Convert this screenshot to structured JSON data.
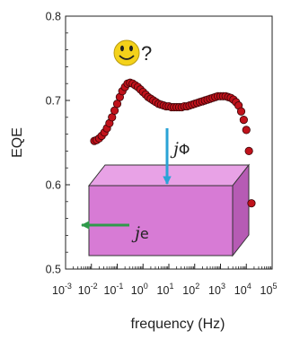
{
  "chart_data": {
    "type": "scatter",
    "xlabel": "frequency (Hz)",
    "ylabel": "EQE",
    "xscale": "log",
    "xlim": [
      0.001,
      100000
    ],
    "ylim": [
      0.5,
      0.8
    ],
    "x_ticks": [
      {
        "base": "10",
        "exp": "-3"
      },
      {
        "base": "10",
        "exp": "-2"
      },
      {
        "base": "10",
        "exp": "-1"
      },
      {
        "base": "10",
        "exp": "0"
      },
      {
        "base": "10",
        "exp": "1"
      },
      {
        "base": "10",
        "exp": "2"
      },
      {
        "base": "10",
        "exp": "3"
      },
      {
        "base": "10",
        "exp": "4"
      },
      {
        "base": "10",
        "exp": "5"
      }
    ],
    "y_ticks": [
      "0.5",
      "0.6",
      "0.7",
      "0.8"
    ],
    "marker_color": "#c0121b",
    "series": [
      {
        "points": [
          [
            0.013,
            0.652
          ],
          [
            0.016,
            0.653
          ],
          [
            0.02,
            0.655
          ],
          [
            0.025,
            0.658
          ],
          [
            0.032,
            0.662
          ],
          [
            0.04,
            0.667
          ],
          [
            0.05,
            0.673
          ],
          [
            0.063,
            0.68
          ],
          [
            0.079,
            0.688
          ],
          [
            0.1,
            0.696
          ],
          [
            0.126,
            0.704
          ],
          [
            0.158,
            0.711
          ],
          [
            0.2,
            0.716
          ],
          [
            0.251,
            0.72
          ],
          [
            0.316,
            0.721
          ],
          [
            0.398,
            0.72
          ],
          [
            0.501,
            0.718
          ],
          [
            0.631,
            0.716
          ],
          [
            0.794,
            0.713
          ],
          [
            1.0,
            0.71
          ],
          [
            1.26,
            0.707
          ],
          [
            1.58,
            0.704
          ],
          [
            2.0,
            0.702
          ],
          [
            2.51,
            0.7
          ],
          [
            3.16,
            0.698
          ],
          [
            3.98,
            0.696
          ],
          [
            5.01,
            0.695
          ],
          [
            6.31,
            0.694
          ],
          [
            7.94,
            0.693
          ],
          [
            10.0,
            0.693
          ],
          [
            12.6,
            0.692
          ],
          [
            15.8,
            0.692
          ],
          [
            20.0,
            0.692
          ],
          [
            25.1,
            0.692
          ],
          [
            31.6,
            0.692
          ],
          [
            39.8,
            0.693
          ],
          [
            50.1,
            0.693
          ],
          [
            63.1,
            0.694
          ],
          [
            79.4,
            0.695
          ],
          [
            100,
            0.696
          ],
          [
            126,
            0.697
          ],
          [
            158,
            0.698
          ],
          [
            200,
            0.699
          ],
          [
            251,
            0.7
          ],
          [
            316,
            0.701
          ],
          [
            398,
            0.702
          ],
          [
            501,
            0.703
          ],
          [
            631,
            0.704
          ],
          [
            794,
            0.705
          ],
          [
            1000,
            0.705
          ],
          [
            1260,
            0.705
          ],
          [
            1580,
            0.705
          ],
          [
            2000,
            0.704
          ],
          [
            2510,
            0.703
          ],
          [
            3160,
            0.701
          ],
          [
            3980,
            0.698
          ],
          [
            5010,
            0.694
          ],
          [
            6310,
            0.687
          ],
          [
            7940,
            0.677
          ],
          [
            10000,
            0.665
          ],
          [
            12600,
            0.64
          ],
          [
            15800,
            0.578
          ]
        ]
      }
    ],
    "annotations": {
      "question": "?",
      "j_phi": {
        "j": "j",
        "sym": "Φ"
      },
      "j_e": {
        "j": "j",
        "sym": "e"
      }
    }
  },
  "colors": {
    "box_front": "#d77bd5",
    "box_top": "#e8a2e6",
    "box_side": "#b65bb4",
    "arrow_phi": "#2aa3d6",
    "arrow_e": "#2f9a4a",
    "smiley": "#f4d21a"
  },
  "icons": {
    "smiley": "smiley-face-icon"
  }
}
